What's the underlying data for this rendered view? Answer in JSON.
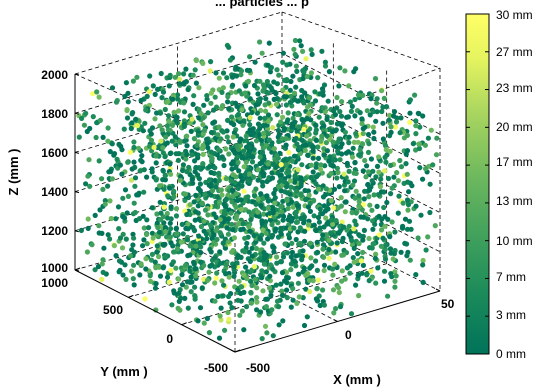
{
  "chart_data": {
    "type": "scatter",
    "title": "... particles ... p",
    "xlabel": "X (mm )",
    "ylabel": "Y (mm )",
    "zlabel": "Z (mm )",
    "xlim": [
      -500,
      500
    ],
    "ylim": [
      -500,
      1000
    ],
    "zlim": [
      1000,
      2000
    ],
    "x_ticks": [
      "-500",
      "0",
      "50"
    ],
    "y_ticks": [
      "1000",
      "500",
      "0",
      "-500"
    ],
    "z_ticks": [
      "2000",
      "1800",
      "1600",
      "1400",
      "1200",
      "1000"
    ],
    "grid": true,
    "colorbar": {
      "label_unit": "mm",
      "range": [
        0,
        30
      ],
      "ticks": [
        "30 mm",
        "27 mm",
        "23 mm",
        "20 mm",
        "17 mm",
        "13 mm",
        "10 mm",
        "7 mm",
        "3 mm",
        "0 mm"
      ],
      "colormap": [
        "#00735a",
        "#1a8a5a",
        "#3fa05c",
        "#6db85e",
        "#a6d45f",
        "#e6f45f",
        "#ffff66"
      ]
    },
    "scatter": {
      "n_points": 2600,
      "x_range": [
        -500,
        500
      ],
      "y_range": [
        -500,
        1000
      ],
      "z_range": [
        1000,
        1950
      ],
      "size_distribution": "mostly 0-12 mm, few near 30 mm",
      "marker": "filled circle"
    }
  }
}
